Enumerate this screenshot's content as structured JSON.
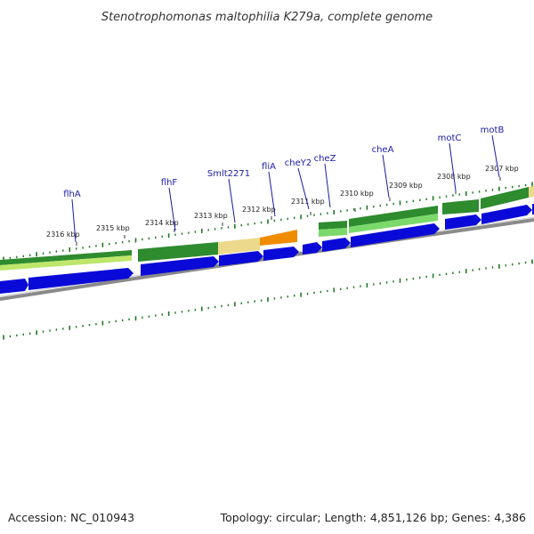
{
  "title": "Stenotrophomonas maltophilia K279a, complete genome",
  "footer": {
    "accession": "Accession: NC_010943",
    "summary": "Topology: circular; Length: 4,851,126 bp; Genes: 4,386"
  },
  "colors": {
    "cds": "#0a0ad8",
    "gene": "#2e8b2e",
    "gene_light": "#7bd96b",
    "pseudo": "#ecd98c",
    "highlight": "#f08c00",
    "backbone": "#8a8a8a",
    "tick": "#1f7a1f",
    "label": "#1a1aa8"
  },
  "ticks": [
    {
      "label": "2316 kbp"
    },
    {
      "label": "2315 kbp"
    },
    {
      "label": "2314 kbp"
    },
    {
      "label": "2313 kbp"
    },
    {
      "label": "2312 kbp"
    },
    {
      "label": "2311 kbp"
    },
    {
      "label": "2310 kbp"
    },
    {
      "label": "2309 kbp"
    },
    {
      "label": "2308 kbp"
    },
    {
      "label": "2307 kbp"
    }
  ],
  "genes": [
    {
      "name": "flhA"
    },
    {
      "name": "flhF"
    },
    {
      "name": "Smlt2271"
    },
    {
      "name": "fliA"
    },
    {
      "name": "cheY2"
    },
    {
      "name": "cheZ"
    },
    {
      "name": "cheA"
    },
    {
      "name": "motC"
    },
    {
      "name": "motB"
    }
  ]
}
